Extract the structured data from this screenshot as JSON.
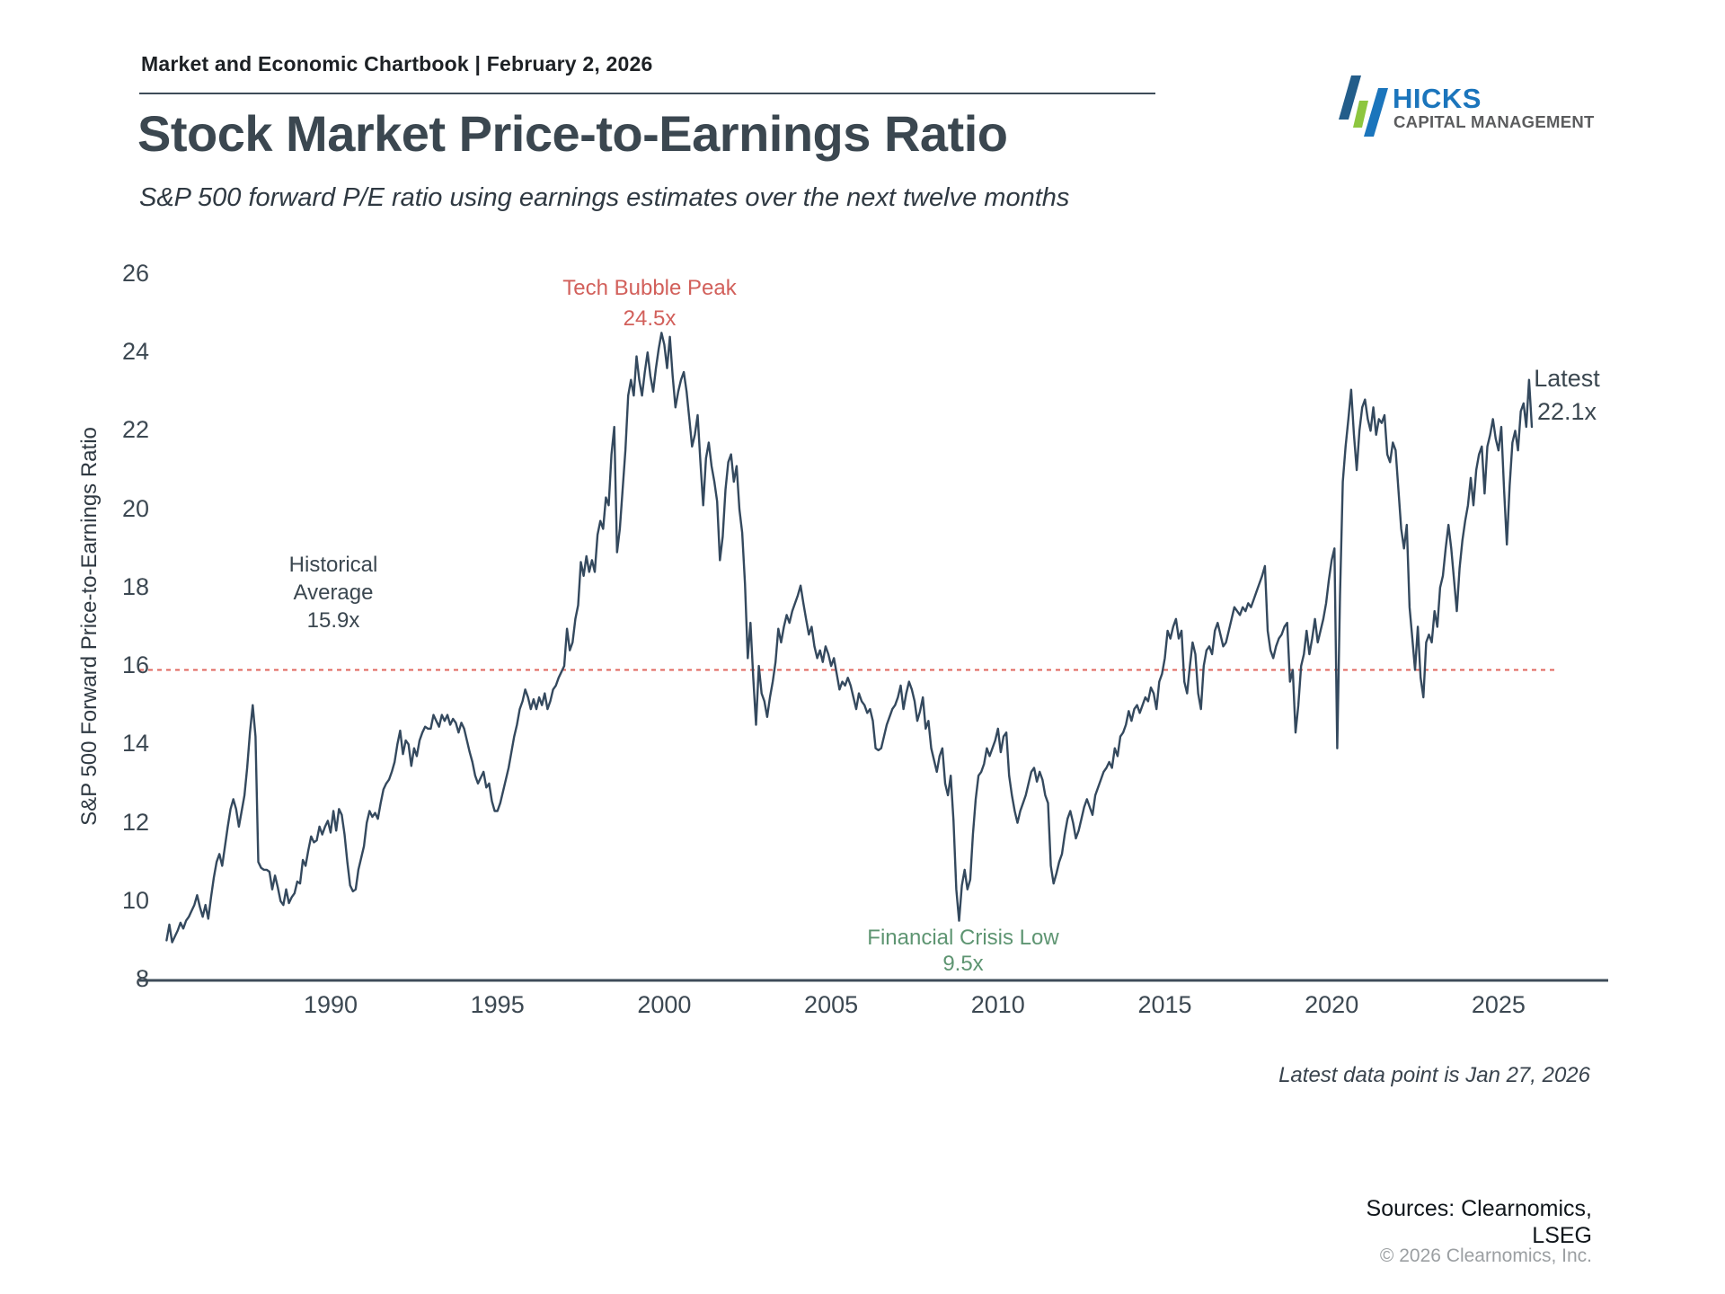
{
  "header": {
    "chartbook_line": "Market and Economic Chartbook | February 2, 2026"
  },
  "logo": {
    "name": "HICKS",
    "tagline": "CAPITAL MANAGEMENT",
    "colors": {
      "name_blue": "#1b75bc",
      "tagline_gray": "#5b5c5e",
      "bar_navy": "#235d8a",
      "bar_green": "#8dc63f",
      "bar_blue": "#1b75bc"
    }
  },
  "title": "Stock Market Price-to-Earnings Ratio",
  "subtitle": "S&P 500 forward P/E ratio using earnings estimates over the next twelve months",
  "annotations": {
    "tech_bubble": {
      "line1": "Tech Bubble Peak",
      "line2": "24.5x"
    },
    "historical_avg": {
      "line1": "Historical",
      "line2": "Average",
      "line3": "15.9x"
    },
    "financial_crisis": {
      "line1": "Financial Crisis Low",
      "line2": "9.5x"
    },
    "latest": {
      "line1": "Latest",
      "line2": "22.1x"
    }
  },
  "footer": {
    "note": "Latest data point is Jan 27, 2026",
    "sources_line1": "Sources: Clearnomics,",
    "sources_line2": "LSEG",
    "copyright": "© 2026 Clearnomics, Inc."
  },
  "chart_data": {
    "type": "line",
    "title": "Stock Market Price-to-Earnings Ratio",
    "ylabel": "S&P 500 Forward Price-to-Earnings Ratio",
    "xlabel": "",
    "ylim": [
      8,
      26
    ],
    "grid": false,
    "y_ticks": [
      26,
      24,
      22,
      20,
      18,
      16,
      14,
      12,
      10,
      8
    ],
    "x_ticks": [
      1990,
      1995,
      2000,
      2005,
      2010,
      2015,
      2020,
      2025
    ],
    "line_color": "#34495e",
    "average_line": {
      "value": 15.9,
      "label": "Historical Average 15.9x",
      "color": "#e0655c",
      "style": "dashed"
    },
    "peak": {
      "label": "Tech Bubble Peak",
      "value": 24.5,
      "year": 1999.9
    },
    "trough": {
      "label": "Financial Crisis Low",
      "value": 9.5,
      "year": 2008.9
    },
    "latest": {
      "date": "Jan 27, 2026",
      "value": 22.1
    },
    "series": {
      "name": "S&P 500 Forward P/E Ratio",
      "frequency": "monthly",
      "start_year": 1985,
      "start_month": 2,
      "values": [
        9.0,
        9.4,
        8.95,
        9.1,
        9.25,
        9.45,
        9.3,
        9.5,
        9.6,
        9.75,
        9.9,
        10.15,
        9.85,
        9.6,
        9.9,
        9.55,
        10.1,
        10.6,
        11.0,
        11.2,
        10.9,
        11.4,
        11.9,
        12.35,
        12.6,
        12.35,
        11.9,
        12.3,
        12.7,
        13.4,
        14.3,
        15.0,
        14.2,
        11.0,
        10.85,
        10.8,
        10.8,
        10.75,
        10.3,
        10.65,
        10.35,
        10.0,
        9.9,
        10.3,
        9.95,
        10.1,
        10.2,
        10.5,
        10.45,
        11.05,
        10.9,
        11.3,
        11.65,
        11.5,
        11.55,
        11.9,
        11.7,
        11.9,
        12.05,
        11.75,
        12.3,
        11.8,
        12.35,
        12.2,
        11.7,
        11.0,
        10.4,
        10.25,
        10.3,
        10.8,
        11.1,
        11.4,
        12.0,
        12.3,
        12.15,
        12.25,
        12.1,
        12.5,
        12.85,
        13.0,
        13.1,
        13.3,
        13.55,
        14.0,
        14.35,
        13.75,
        14.1,
        14.0,
        13.45,
        13.9,
        13.7,
        14.1,
        14.3,
        14.45,
        14.4,
        14.4,
        14.75,
        14.6,
        14.45,
        14.75,
        14.6,
        14.75,
        14.5,
        14.65,
        14.55,
        14.3,
        14.55,
        14.4,
        14.1,
        13.8,
        13.55,
        13.2,
        13.0,
        13.15,
        13.3,
        12.9,
        13.0,
        12.55,
        12.3,
        12.3,
        12.5,
        12.8,
        13.1,
        13.4,
        13.8,
        14.2,
        14.5,
        14.9,
        15.1,
        15.4,
        15.2,
        14.9,
        15.15,
        14.9,
        15.2,
        15.0,
        15.3,
        14.9,
        15.1,
        15.4,
        15.5,
        15.7,
        15.85,
        16.0,
        16.95,
        16.4,
        16.6,
        17.2,
        17.55,
        18.65,
        18.3,
        18.8,
        18.4,
        18.7,
        18.4,
        19.35,
        19.7,
        19.5,
        20.3,
        20.1,
        21.4,
        22.1,
        18.9,
        19.5,
        20.5,
        21.5,
        22.9,
        23.3,
        22.9,
        23.9,
        23.3,
        22.9,
        23.5,
        24.0,
        23.4,
        23.0,
        23.6,
        24.1,
        24.5,
        24.2,
        23.6,
        24.4,
        23.4,
        22.6,
        23.0,
        23.3,
        23.5,
        23.0,
        22.3,
        21.6,
        21.9,
        22.4,
        21.2,
        20.1,
        21.3,
        21.7,
        21.1,
        20.7,
        20.2,
        18.7,
        19.3,
        20.5,
        21.2,
        21.4,
        20.7,
        21.1,
        20.0,
        19.4,
        18.1,
        16.2,
        17.1,
        15.7,
        14.5,
        16.0,
        15.3,
        15.1,
        14.7,
        15.2,
        15.6,
        16.1,
        16.95,
        16.6,
        17.0,
        17.3,
        17.1,
        17.4,
        17.6,
        17.8,
        18.05,
        17.6,
        17.2,
        16.8,
        17.0,
        16.5,
        16.2,
        16.4,
        16.1,
        16.5,
        16.3,
        16.0,
        16.2,
        15.8,
        15.4,
        15.6,
        15.5,
        15.7,
        15.5,
        15.2,
        14.9,
        15.3,
        15.1,
        15.0,
        14.8,
        14.9,
        14.6,
        13.9,
        13.85,
        13.9,
        14.2,
        14.5,
        14.7,
        14.9,
        15.0,
        15.2,
        15.5,
        14.9,
        15.3,
        15.6,
        15.4,
        15.1,
        14.6,
        14.85,
        15.2,
        14.4,
        14.6,
        13.9,
        13.6,
        13.3,
        13.7,
        13.9,
        13.0,
        12.7,
        13.2,
        12.05,
        10.3,
        9.5,
        10.4,
        10.8,
        10.3,
        10.55,
        11.7,
        12.6,
        13.2,
        13.3,
        13.5,
        13.9,
        13.7,
        13.9,
        14.1,
        14.4,
        13.8,
        14.2,
        14.3,
        13.2,
        12.7,
        12.3,
        12.0,
        12.3,
        12.5,
        12.7,
        13.0,
        13.3,
        13.4,
        13.05,
        13.3,
        13.1,
        12.7,
        12.5,
        10.9,
        10.45,
        10.7,
        11.0,
        11.2,
        11.7,
        12.1,
        12.3,
        12.0,
        11.6,
        11.8,
        12.1,
        12.4,
        12.6,
        12.4,
        12.2,
        12.7,
        12.9,
        13.1,
        13.3,
        13.4,
        13.55,
        13.4,
        13.9,
        13.7,
        14.2,
        14.3,
        14.5,
        14.85,
        14.6,
        14.9,
        15.0,
        14.8,
        15.0,
        15.2,
        15.1,
        15.45,
        15.3,
        14.9,
        15.6,
        15.8,
        16.2,
        16.9,
        16.7,
        17.0,
        17.2,
        16.7,
        16.9,
        15.6,
        15.3,
        16.0,
        16.6,
        16.3,
        15.3,
        14.9,
        16.0,
        16.4,
        16.5,
        16.3,
        16.9,
        17.1,
        16.8,
        16.5,
        16.6,
        16.9,
        17.2,
        17.5,
        17.4,
        17.3,
        17.5,
        17.4,
        17.6,
        17.5,
        17.7,
        17.9,
        18.1,
        18.3,
        18.55,
        16.9,
        16.4,
        16.2,
        16.5,
        16.7,
        16.8,
        17.0,
        17.1,
        15.6,
        15.9,
        14.3,
        15.0,
        16.0,
        16.3,
        16.9,
        16.3,
        16.7,
        17.2,
        16.6,
        16.9,
        17.2,
        17.6,
        18.2,
        18.7,
        19.0,
        13.9,
        17.8,
        20.7,
        21.6,
        22.3,
        23.05,
        21.9,
        21.0,
        22.0,
        22.6,
        22.8,
        22.3,
        22.0,
        22.6,
        21.9,
        22.3,
        22.2,
        22.4,
        21.4,
        21.2,
        21.7,
        21.5,
        20.5,
        19.5,
        19.0,
        19.6,
        17.5,
        16.7,
        15.9,
        17.0,
        15.7,
        15.2,
        16.6,
        16.8,
        16.6,
        17.4,
        17.0,
        18.0,
        18.3,
        19.0,
        19.6,
        19.0,
        18.2,
        17.4,
        18.5,
        19.2,
        19.7,
        20.1,
        20.8,
        20.1,
        21.0,
        21.4,
        21.6,
        20.4,
        21.6,
        21.9,
        22.3,
        21.8,
        21.5,
        22.1,
        20.5,
        19.1,
        20.6,
        21.7,
        22.0,
        21.5,
        22.5,
        22.7,
        22.1,
        23.3,
        22.1
      ]
    }
  }
}
